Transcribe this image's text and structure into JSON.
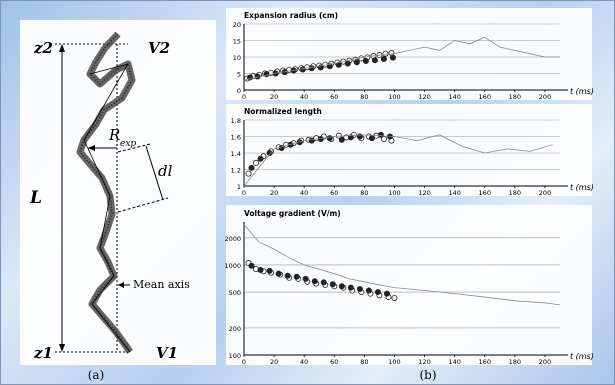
{
  "figure": {
    "panel_a": {
      "label": "(a)",
      "z2": "z2",
      "z1": "z1",
      "V2": "V2",
      "V1": "V1",
      "L": "L",
      "Rexp": "R",
      "Rexp_sub": "exp",
      "dl": "dl",
      "mean_axis": "Mean axis"
    },
    "panel_b": {
      "label": "(b)"
    }
  },
  "chart_data": [
    {
      "type": "scatter",
      "title": "Expansion radius (cm)",
      "xlabel": "t (ms)",
      "ylabel": "",
      "x_ticks": [
        0,
        20,
        40,
        60,
        80,
        100,
        120,
        140,
        160,
        180,
        200
      ],
      "y_ticks": [
        0,
        5,
        10,
        15,
        20
      ],
      "ylim": [
        0,
        20
      ],
      "xlim": [
        0,
        210
      ],
      "grid": true,
      "series": [
        {
          "marker": "open-circle",
          "x": [
            2,
            6,
            10,
            14,
            18,
            22,
            26,
            30,
            34,
            38,
            42,
            46,
            50,
            54,
            58,
            62,
            66,
            70,
            74,
            78,
            82,
            86,
            90,
            94,
            98
          ],
          "values": [
            3.5,
            4.2,
            4.6,
            5.0,
            5.2,
            5.6,
            5.9,
            6.1,
            6.3,
            6.6,
            6.9,
            7.2,
            7.4,
            7.7,
            8.0,
            8.3,
            8.6,
            8.9,
            9.2,
            9.6,
            9.9,
            10.3,
            10.6,
            11.0,
            11.2
          ]
        },
        {
          "marker": "filled-circle",
          "x": [
            4,
            9,
            15,
            21,
            27,
            33,
            39,
            45,
            51,
            57,
            63,
            69,
            75,
            81,
            87,
            93,
            99
          ],
          "values": [
            3.8,
            4.1,
            4.8,
            5.0,
            5.4,
            5.9,
            6.2,
            6.6,
            6.8,
            7.2,
            7.6,
            8.0,
            8.4,
            8.8,
            9.0,
            9.4,
            9.8
          ]
        },
        {
          "marker": "gray-line",
          "x": [
            0,
            20,
            40,
            60,
            80,
            100,
            110,
            120,
            130,
            140,
            150,
            160,
            170,
            180,
            190,
            200,
            210
          ],
          "values": [
            3,
            5,
            6.5,
            8,
            10,
            11,
            12,
            13,
            12,
            15,
            14,
            16,
            13,
            12,
            11,
            10,
            10
          ]
        }
      ]
    },
    {
      "type": "scatter",
      "title": "Normalized length",
      "xlabel": "t (ms)",
      "ylabel": "",
      "x_ticks": [
        0,
        20,
        40,
        60,
        80,
        100,
        120,
        140,
        160,
        180,
        200
      ],
      "y_ticks": [
        1.0,
        1.2,
        1.4,
        1.6,
        1.8
      ],
      "ylim": [
        1.0,
        1.8
      ],
      "xlim": [
        0,
        210
      ],
      "grid": true,
      "series": [
        {
          "marker": "open-circle",
          "x": [
            3,
            8,
            13,
            18,
            23,
            28,
            33,
            38,
            43,
            48,
            53,
            58,
            63,
            68,
            73,
            78,
            83,
            88,
            93,
            98
          ],
          "values": [
            1.15,
            1.28,
            1.36,
            1.42,
            1.47,
            1.5,
            1.52,
            1.55,
            1.56,
            1.58,
            1.6,
            1.57,
            1.61,
            1.59,
            1.62,
            1.58,
            1.6,
            1.61,
            1.57,
            1.55
          ]
        },
        {
          "marker": "filled-circle",
          "x": [
            5,
            11,
            17,
            25,
            31,
            37,
            45,
            51,
            57,
            65,
            71,
            77,
            85,
            91,
            97
          ],
          "values": [
            1.22,
            1.33,
            1.4,
            1.46,
            1.5,
            1.53,
            1.55,
            1.57,
            1.58,
            1.56,
            1.59,
            1.6,
            1.58,
            1.62,
            1.6
          ]
        },
        {
          "marker": "gray-line",
          "x": [
            0,
            20,
            40,
            60,
            80,
            100,
            115,
            130,
            145,
            160,
            175,
            190,
            205
          ],
          "values": [
            1.0,
            1.45,
            1.55,
            1.6,
            1.62,
            1.6,
            1.55,
            1.62,
            1.48,
            1.4,
            1.45,
            1.42,
            1.5
          ]
        }
      ]
    },
    {
      "type": "scatter",
      "title": "Voltage gradient (V/m)",
      "xlabel": "t (ms)",
      "ylabel": "",
      "x_ticks": [
        0,
        20,
        40,
        60,
        80,
        100,
        120,
        140,
        160,
        180,
        200
      ],
      "y_ticks": [
        100,
        200,
        500,
        1000,
        2000
      ],
      "y_scale": "log",
      "ylim": [
        100,
        3000
      ],
      "xlim": [
        0,
        210
      ],
      "grid": true,
      "series": [
        {
          "marker": "open-circle",
          "x": [
            3,
            8,
            13,
            18,
            24,
            30,
            36,
            42,
            48,
            54,
            60,
            66,
            72,
            78,
            84,
            90,
            96,
            100
          ],
          "values": [
            1050,
            900,
            850,
            820,
            780,
            720,
            700,
            650,
            620,
            600,
            580,
            560,
            520,
            500,
            480,
            460,
            440,
            430
          ]
        },
        {
          "marker": "filled-circle",
          "x": [
            5,
            11,
            17,
            23,
            29,
            35,
            41,
            47,
            53,
            59,
            65,
            71,
            77,
            83,
            89,
            95
          ],
          "values": [
            980,
            880,
            860,
            800,
            760,
            740,
            700,
            660,
            640,
            610,
            580,
            560,
            540,
            520,
            500,
            480
          ]
        },
        {
          "marker": "gray-line",
          "x": [
            0,
            10,
            20,
            30,
            40,
            50,
            60,
            70,
            80,
            90,
            100,
            120,
            140,
            160,
            180,
            200,
            210
          ],
          "values": [
            2800,
            1800,
            1500,
            1200,
            1000,
            900,
            800,
            700,
            650,
            600,
            560,
            520,
            480,
            440,
            400,
            380,
            360
          ]
        }
      ]
    }
  ]
}
